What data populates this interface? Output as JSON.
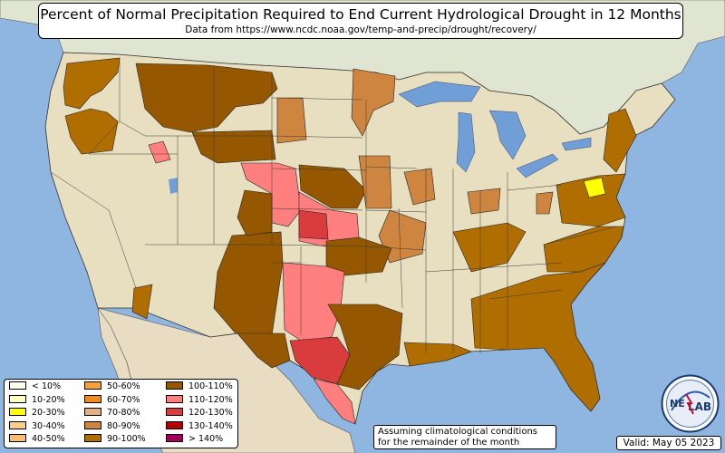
{
  "title": "Percent of Normal Precipitation Required to End Current Hydrological Drought in 12 Months",
  "subtitle": "Data from https://www.ncdc.noaa.gov/temp-and-precip/drought/recovery/",
  "assumption_note": {
    "line1": "Assuming climatological conditions",
    "line2": "for the remainder of the month"
  },
  "valid_label": "Valid: May 05 2023",
  "logo": {
    "text_left": "NE",
    "text_right": "LAB"
  },
  "colors": {
    "ocean": "#8fb6e0",
    "land": "#e7dfbf",
    "canada": "#dfe5d0",
    "mexico": "#e8dcc2",
    "lake": "#6f9fd6",
    "border": "#333333"
  },
  "legend": [
    {
      "label": "< 10%",
      "color": "#fffff0"
    },
    {
      "label": "10-20%",
      "color": "#ffffc0"
    },
    {
      "label": "20-30%",
      "color": "#ffff00"
    },
    {
      "label": "30-40%",
      "color": "#fdcd8c"
    },
    {
      "label": "40-50%",
      "color": "#fdbd6e"
    },
    {
      "label": "50-60%",
      "color": "#f5a03a"
    },
    {
      "label": "60-70%",
      "color": "#f08c1c"
    },
    {
      "label": "70-80%",
      "color": "#e0b080"
    },
    {
      "label": "80-90%",
      "color": "#cd853f"
    },
    {
      "label": "90-100%",
      "color": "#b06e00"
    },
    {
      "label": "100-110%",
      "color": "#955800"
    },
    {
      "label": "110-120%",
      "color": "#ff7f7f"
    },
    {
      "label": "120-130%",
      "color": "#d83c3c"
    },
    {
      "label": "130-140%",
      "color": "#b00000"
    },
    {
      "label": "> 140%",
      "color": "#a0005a"
    }
  ],
  "drought_areas": [
    {
      "region": "Pacific Northwest coast",
      "category": "90-100%"
    },
    {
      "region": "Idaho / Montana",
      "category": "100-110%"
    },
    {
      "region": "Wyoming",
      "category": "100-110%"
    },
    {
      "region": "Idaho (south)",
      "category": "110-120%"
    },
    {
      "region": "North Dakota / Minnesota",
      "category": "80-90%"
    },
    {
      "region": "Nebraska / South Dakota",
      "category": "110-120%"
    },
    {
      "region": "Kansas",
      "category": "120-130%"
    },
    {
      "region": "Iowa / Missouri",
      "category": "80-90%"
    },
    {
      "region": "Colorado / New Mexico",
      "category": "100-110%"
    },
    {
      "region": "Arizona",
      "category": "90-100%"
    },
    {
      "region": "Oklahoma / West Texas",
      "category": "110-120%"
    },
    {
      "region": "Central Texas",
      "category": "120-130%"
    },
    {
      "region": "South Texas",
      "category": "110-120%"
    },
    {
      "region": "East Texas / Louisiana",
      "category": "90-100%"
    },
    {
      "region": "Southeast (GA / FL / Carolinas)",
      "category": "90-100%"
    },
    {
      "region": "Mid-Atlantic",
      "category": "90-100%"
    },
    {
      "region": "Delmarva",
      "category": "20-30%"
    },
    {
      "region": "Ohio Valley",
      "category": "80-90%"
    }
  ]
}
